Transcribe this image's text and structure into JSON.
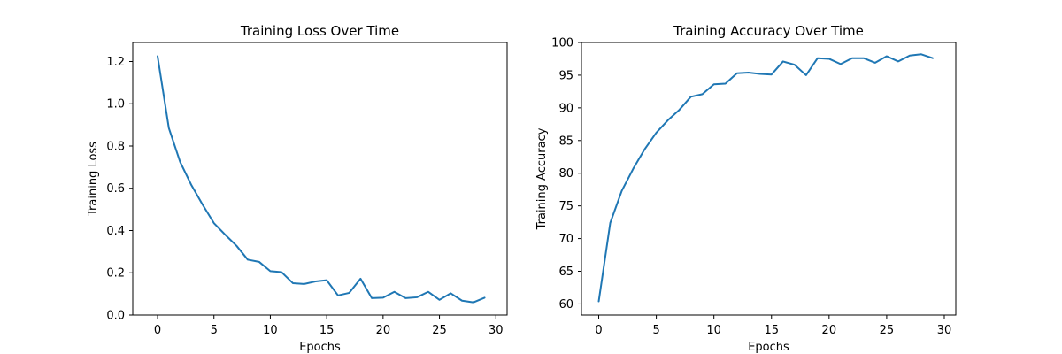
{
  "chart_data": [
    {
      "type": "line",
      "title": "Training Loss Over Time",
      "xlabel": "Epochs",
      "ylabel": "Training Loss",
      "xlim": [
        -2.2,
        31
      ],
      "ylim": [
        0.0,
        1.29
      ],
      "xticks": [
        0,
        5,
        10,
        15,
        20,
        25,
        30
      ],
      "yticks": [
        0.0,
        0.2,
        0.4,
        0.6,
        0.8,
        1.0,
        1.2
      ],
      "ytick_decimals": 1,
      "grid": false,
      "color": "#1f77b4",
      "x": [
        0,
        1,
        2,
        3,
        4,
        5,
        6,
        7,
        8,
        9,
        10,
        11,
        12,
        13,
        14,
        15,
        16,
        17,
        18,
        19,
        20,
        21,
        22,
        23,
        24,
        25,
        26,
        27,
        28,
        29
      ],
      "series": [
        {
          "values": [
            1.225,
            0.885,
            0.725,
            0.615,
            0.522,
            0.435,
            0.38,
            0.328,
            0.262,
            0.252,
            0.208,
            0.203,
            0.151,
            0.147,
            0.159,
            0.165,
            0.093,
            0.105,
            0.172,
            0.08,
            0.082,
            0.11,
            0.08,
            0.084,
            0.11,
            0.072,
            0.103,
            0.068,
            0.06,
            0.082
          ]
        }
      ]
    },
    {
      "type": "line",
      "title": "Training Accuracy Over Time",
      "xlabel": "Epochs",
      "ylabel": "Training Accuracy",
      "xlim": [
        -1.5,
        31
      ],
      "ylim": [
        58.3,
        100.0
      ],
      "xticks": [
        0,
        5,
        10,
        15,
        20,
        25,
        30
      ],
      "yticks": [
        60,
        65,
        70,
        75,
        80,
        85,
        90,
        95,
        100
      ],
      "ytick_decimals": 0,
      "grid": false,
      "color": "#1f77b4",
      "x": [
        0,
        1,
        2,
        3,
        4,
        5,
        6,
        7,
        8,
        9,
        10,
        11,
        12,
        13,
        14,
        15,
        16,
        17,
        18,
        19,
        20,
        21,
        22,
        23,
        24,
        25,
        26,
        27,
        28,
        29
      ],
      "series": [
        {
          "values": [
            60.4,
            72.4,
            77.3,
            80.7,
            83.7,
            86.2,
            88.1,
            89.7,
            91.7,
            92.1,
            93.6,
            93.7,
            95.3,
            95.4,
            95.2,
            95.1,
            97.1,
            96.6,
            95.0,
            97.6,
            97.5,
            96.7,
            97.6,
            97.6,
            96.9,
            97.9,
            97.1,
            98.0,
            98.2,
            97.6
          ]
        }
      ]
    }
  ]
}
